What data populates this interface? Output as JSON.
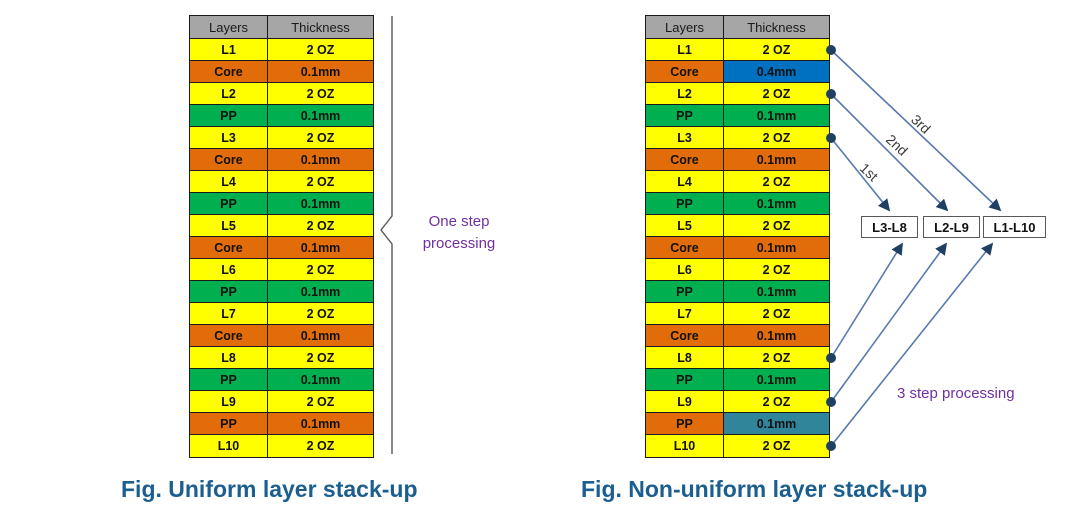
{
  "colors": {
    "yellow": "#FFFF00",
    "orange": "#E36C0A",
    "green": "#00B050",
    "blue": "#0070C0",
    "teal": "#31859B",
    "header_gray": "#A6A6A6",
    "connector_line_blue": "#5878B0",
    "dot_navy": "#1F4063",
    "annotation_purple": "#7030A0",
    "caption_blue": "#1B5E90"
  },
  "left_table": {
    "headers": [
      "Layers",
      "Thickness"
    ],
    "rows": [
      {
        "layer": "L1",
        "thickness": "2 OZ",
        "layer_color": "yellow",
        "thickness_color": "yellow"
      },
      {
        "layer": "Core",
        "thickness": "0.1mm",
        "layer_color": "orange",
        "thickness_color": "orange"
      },
      {
        "layer": "L2",
        "thickness": "2 OZ",
        "layer_color": "yellow",
        "thickness_color": "yellow"
      },
      {
        "layer": "PP",
        "thickness": "0.1mm",
        "layer_color": "green",
        "thickness_color": "green"
      },
      {
        "layer": "L3",
        "thickness": "2 OZ",
        "layer_color": "yellow",
        "thickness_color": "yellow"
      },
      {
        "layer": "Core",
        "thickness": "0.1mm",
        "layer_color": "orange",
        "thickness_color": "orange"
      },
      {
        "layer": "L4",
        "thickness": "2 OZ",
        "layer_color": "yellow",
        "thickness_color": "yellow"
      },
      {
        "layer": "PP",
        "thickness": "0.1mm",
        "layer_color": "green",
        "thickness_color": "green"
      },
      {
        "layer": "L5",
        "thickness": "2 OZ",
        "layer_color": "yellow",
        "thickness_color": "yellow"
      },
      {
        "layer": "Core",
        "thickness": "0.1mm",
        "layer_color": "orange",
        "thickness_color": "orange"
      },
      {
        "layer": "L6",
        "thickness": "2 OZ",
        "layer_color": "yellow",
        "thickness_color": "yellow"
      },
      {
        "layer": "PP",
        "thickness": "0.1mm",
        "layer_color": "green",
        "thickness_color": "green"
      },
      {
        "layer": "L7",
        "thickness": "2 OZ",
        "layer_color": "yellow",
        "thickness_color": "yellow"
      },
      {
        "layer": "Core",
        "thickness": "0.1mm",
        "layer_color": "orange",
        "thickness_color": "orange"
      },
      {
        "layer": "L8",
        "thickness": "2 OZ",
        "layer_color": "yellow",
        "thickness_color": "yellow"
      },
      {
        "layer": "PP",
        "thickness": "0.1mm",
        "layer_color": "green",
        "thickness_color": "green"
      },
      {
        "layer": "L9",
        "thickness": "2 OZ",
        "layer_color": "yellow",
        "thickness_color": "yellow"
      },
      {
        "layer": "PP",
        "thickness": "0.1mm",
        "layer_color": "orange",
        "thickness_color": "orange"
      },
      {
        "layer": "L10",
        "thickness": "2 OZ",
        "layer_color": "yellow",
        "thickness_color": "yellow"
      }
    ],
    "annotation": "One step processing",
    "caption": "Fig. Uniform layer stack-up"
  },
  "right_table": {
    "headers": [
      "Layers",
      "Thickness"
    ],
    "rows": [
      {
        "layer": "L1",
        "thickness": "2 OZ",
        "layer_color": "yellow",
        "thickness_color": "yellow"
      },
      {
        "layer": "Core",
        "thickness": "0.4mm",
        "layer_color": "orange",
        "thickness_color": "blue"
      },
      {
        "layer": "L2",
        "thickness": "2 OZ",
        "layer_color": "yellow",
        "thickness_color": "yellow"
      },
      {
        "layer": "PP",
        "thickness": "0.1mm",
        "layer_color": "green",
        "thickness_color": "green"
      },
      {
        "layer": "L3",
        "thickness": "2 OZ",
        "layer_color": "yellow",
        "thickness_color": "yellow"
      },
      {
        "layer": "Core",
        "thickness": "0.1mm",
        "layer_color": "orange",
        "thickness_color": "orange"
      },
      {
        "layer": "L4",
        "thickness": "2 OZ",
        "layer_color": "yellow",
        "thickness_color": "yellow"
      },
      {
        "layer": "PP",
        "thickness": "0.1mm",
        "layer_color": "green",
        "thickness_color": "green"
      },
      {
        "layer": "L5",
        "thickness": "2 OZ",
        "layer_color": "yellow",
        "thickness_color": "yellow"
      },
      {
        "layer": "Core",
        "thickness": "0.1mm",
        "layer_color": "orange",
        "thickness_color": "orange"
      },
      {
        "layer": "L6",
        "thickness": "2 OZ",
        "layer_color": "yellow",
        "thickness_color": "yellow"
      },
      {
        "layer": "PP",
        "thickness": "0.1mm",
        "layer_color": "green",
        "thickness_color": "green"
      },
      {
        "layer": "L7",
        "thickness": "2 OZ",
        "layer_color": "yellow",
        "thickness_color": "yellow"
      },
      {
        "layer": "Core",
        "thickness": "0.1mm",
        "layer_color": "orange",
        "thickness_color": "orange"
      },
      {
        "layer": "L8",
        "thickness": "2 OZ",
        "layer_color": "yellow",
        "thickness_color": "yellow"
      },
      {
        "layer": "PP",
        "thickness": "0.1mm",
        "layer_color": "green",
        "thickness_color": "green"
      },
      {
        "layer": "L9",
        "thickness": "2 OZ",
        "layer_color": "yellow",
        "thickness_color": "yellow"
      },
      {
        "layer": "PP",
        "thickness": "0.1mm",
        "layer_color": "orange",
        "thickness_color": "teal"
      },
      {
        "layer": "L10",
        "thickness": "2 OZ",
        "layer_color": "yellow",
        "thickness_color": "yellow"
      }
    ],
    "step_labels": [
      "1st",
      "2nd",
      "3rd"
    ],
    "group_boxes": [
      "L3-L8",
      "L2-L9",
      "L1-L10"
    ],
    "annotation": "3 step processing",
    "caption": "Fig. Non-uniform layer stack-up"
  }
}
